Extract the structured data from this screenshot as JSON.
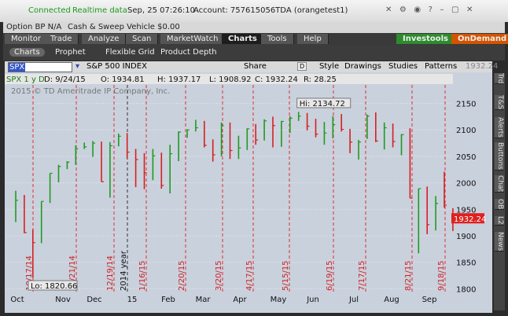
{
  "title_bar": {
    "status": "Connected",
    "feed": "Realtime data",
    "datetime": "Sep, 25  07:26:10",
    "account": "Account: 757615056TDA (orangetest1)"
  },
  "account_bar": {
    "option_bp": "Option BP  N/A",
    "cash": "Cash & Sweep Vehicle  $0.00"
  },
  "tabs": [
    "Monitor",
    "Trade",
    "Analyze",
    "Scan",
    "MarketWatch",
    "Charts",
    "Tools",
    "Help"
  ],
  "tab_buttons": [
    "Investools",
    "OnDemand"
  ],
  "subtabs": [
    "Charts",
    "Prophet",
    "Flexible Grid",
    "Product Depth"
  ],
  "toolbar": {
    "symbol": "SPX",
    "description": "S&P 500 INDEX",
    "share": "Share",
    "period": "D",
    "style": "Style",
    "drawings": "Drawings",
    "studies": "Studies",
    "patterns": "Patterns",
    "price": "1932.24"
  },
  "info_line": [
    "SPX 1 y D",
    "D: 9/24/15",
    "O: 1934.81",
    "H: 1937.17",
    "L: 1908.92",
    "C: 1932.24",
    "R: 28.25"
  ],
  "sidebar": [
    "Trd",
    "T&S",
    "Alerts",
    "Buttons",
    "Chat",
    "OB",
    "L2",
    "News"
  ],
  "chart": {
    "type": "ohlc",
    "copyright": "2015 © TD Ameritrade IP Company, Inc.",
    "high": [
      1985,
      1977,
      1912,
      1965,
      2018,
      2034,
      2041,
      2071,
      2076,
      2079,
      2078,
      2077,
      2093,
      2094,
      2064,
      2056,
      2064,
      2057,
      2072,
      2097,
      2101,
      2119,
      2117,
      2082,
      2114,
      2114,
      2089,
      2103,
      2111,
      2120,
      2125,
      2117,
      2126,
      2134,
      2132,
      2121,
      2115,
      2126,
      2130,
      2102,
      2081,
      2129,
      2133,
      2114,
      2112,
      2092,
      2103,
      1989,
      1993,
      1975,
      2021,
      1952
    ],
    "low": [
      1926,
      1905,
      1821,
      1886,
      1962,
      2001,
      2026,
      2034,
      2064,
      2049,
      2002,
      1972,
      2069,
      2046,
      1992,
      1988,
      2005,
      1989,
      1980,
      2041,
      2085,
      2097,
      2067,
      2040,
      2050,
      2045,
      2045,
      2062,
      2072,
      2080,
      2067,
      2068,
      2094,
      2117,
      2099,
      2086,
      2072,
      2084,
      2097,
      2056,
      2044,
      2083,
      2077,
      2063,
      2067,
      2052,
      1971,
      1867,
      1903,
      1910,
      1953,
      1909
    ],
    "close": [
      1967,
      1906,
      1887,
      1965,
      2018,
      2031,
      2039,
      2064,
      2068,
      2075,
      2002,
      2070,
      2088,
      2058,
      2044,
      2019,
      2051,
      1995,
      2055,
      2096,
      2100,
      2104,
      2071,
      2053,
      2108,
      2061,
      2066,
      2102,
      2081,
      2117,
      2108,
      2116,
      2122,
      2126,
      2107,
      2092,
      2094,
      2110,
      2101,
      2077,
      2077,
      2126,
      2079,
      2104,
      2078,
      2091,
      1971,
      1989,
      1921,
      1961,
      1958,
      1932
    ],
    "ylim": [
      1793,
      2185
    ],
    "yticks": [
      1800,
      1850,
      1900,
      1950,
      2000,
      2050,
      2100,
      2150
    ],
    "last_price": 1932.24,
    "months": [
      "Oct",
      "Nov",
      "Dec",
      "15",
      "Feb",
      "Mar",
      "Apr",
      "May",
      "Jun",
      "Jul",
      "Aug",
      "Sep"
    ],
    "expirations": [
      "10/17/14",
      "11/21/14",
      "12/19/14",
      "1/16/15",
      "2/20/15",
      "3/20/15",
      "4/17/15",
      "5/15/15",
      "6/19/15",
      "7/17/15",
      "8/21/15",
      "9/18/15"
    ],
    "year_marker": "2014 year",
    "hi_label": "Hi: 2134.72",
    "lo_label": "Lo: 1820.66"
  }
}
